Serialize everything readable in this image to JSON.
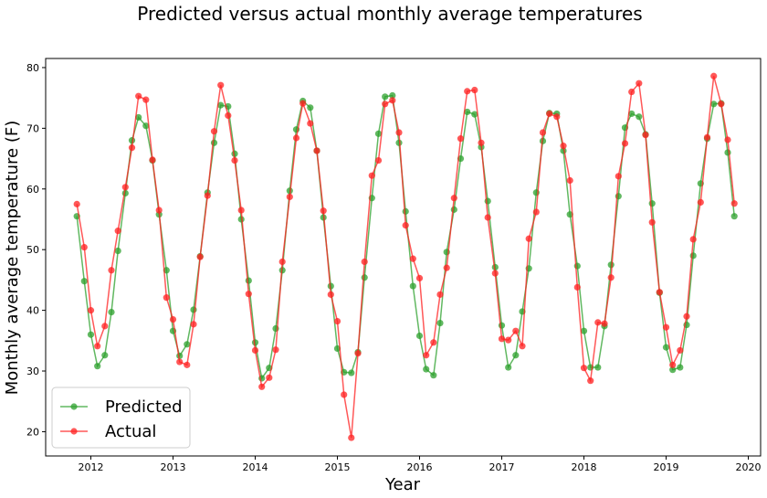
{
  "chart_data": {
    "type": "line",
    "title": "Predicted versus actual monthly average temperatures",
    "xlabel": "Year",
    "ylabel": "Monthly average temperature (F)",
    "xlim": [
      2011.45,
      2020.15
    ],
    "ylim": [
      16,
      81.5
    ],
    "xticks": [
      "2012",
      "2013",
      "2014",
      "2015",
      "2016",
      "2017",
      "2018",
      "2019",
      "2020"
    ],
    "yticks": [
      "20",
      "30",
      "40",
      "50",
      "60",
      "70",
      "80"
    ],
    "grid": false,
    "legend_position": "bottom-left",
    "x": [
      2011.83,
      2011.92,
      2012.0,
      2012.08,
      2012.17,
      2012.25,
      2012.33,
      2012.42,
      2012.5,
      2012.58,
      2012.67,
      2012.75,
      2012.83,
      2012.92,
      2013.0,
      2013.08,
      2013.17,
      2013.25,
      2013.33,
      2013.42,
      2013.5,
      2013.58,
      2013.67,
      2013.75,
      2013.83,
      2013.92,
      2014.0,
      2014.08,
      2014.17,
      2014.25,
      2014.33,
      2014.42,
      2014.5,
      2014.58,
      2014.67,
      2014.75,
      2014.83,
      2014.92,
      2015.0,
      2015.08,
      2015.17,
      2015.25,
      2015.33,
      2015.42,
      2015.5,
      2015.58,
      2015.67,
      2015.75,
      2015.83,
      2015.92,
      2016.0,
      2016.08,
      2016.17,
      2016.25,
      2016.33,
      2016.42,
      2016.5,
      2016.58,
      2016.67,
      2016.75,
      2016.83,
      2016.92,
      2017.0,
      2017.08,
      2017.17,
      2017.25,
      2017.33,
      2017.42,
      2017.5,
      2017.58,
      2017.67,
      2017.75,
      2017.83,
      2017.92,
      2018.0,
      2018.08,
      2018.17,
      2018.25,
      2018.33,
      2018.42,
      2018.5,
      2018.58,
      2018.67,
      2018.75,
      2018.83,
      2018.92,
      2019.0,
      2019.08,
      2019.17,
      2019.25,
      2019.33,
      2019.42,
      2019.5,
      2019.58,
      2019.67,
      2019.75,
      2019.83
    ],
    "series": [
      {
        "name": "Predicted",
        "color": "#2ca02c",
        "values": [
          55.5,
          44.8,
          36.0,
          30.8,
          32.6,
          39.7,
          49.8,
          59.3,
          68.0,
          71.8,
          70.4,
          64.7,
          55.8,
          46.6,
          36.6,
          32.5,
          34.4,
          40.1,
          48.9,
          59.4,
          67.6,
          73.8,
          73.6,
          65.8,
          55.0,
          44.9,
          34.7,
          28.8,
          30.5,
          37.0,
          46.6,
          59.7,
          69.8,
          74.5,
          73.4,
          66.3,
          55.3,
          44.0,
          33.7,
          29.8,
          29.7,
          33.1,
          45.4,
          58.5,
          69.1,
          75.2,
          75.4,
          67.6,
          56.3,
          44.0,
          35.8,
          30.3,
          29.3,
          37.9,
          49.6,
          56.6,
          65.0,
          72.7,
          72.3,
          66.9,
          58.0,
          47.1,
          37.5,
          30.6,
          32.6,
          39.8,
          46.9,
          59.4,
          67.9,
          72.5,
          72.4,
          66.3,
          55.8,
          47.3,
          36.6,
          30.6,
          30.6,
          37.4,
          47.5,
          58.8,
          70.1,
          72.4,
          71.9,
          69.0,
          57.6,
          42.9,
          33.9,
          30.2,
          30.6,
          37.6,
          49.0,
          60.9,
          68.3,
          74.0,
          74.1,
          66.0,
          55.5
        ]
      },
      {
        "name": "Actual",
        "color": "#ff2020",
        "values": [
          57.5,
          50.4,
          40.0,
          34.1,
          37.4,
          46.6,
          53.1,
          60.3,
          66.8,
          75.3,
          74.7,
          64.8,
          56.5,
          42.1,
          38.5,
          31.5,
          31.0,
          37.7,
          48.8,
          58.9,
          69.5,
          77.1,
          72.1,
          64.7,
          56.5,
          42.7,
          33.4,
          27.4,
          28.9,
          33.5,
          48.0,
          58.7,
          68.4,
          74.1,
          70.8,
          66.3,
          56.4,
          42.6,
          38.2,
          26.1,
          19.0,
          32.9,
          48.0,
          62.2,
          64.7,
          74.0,
          74.6,
          69.3,
          54.0,
          48.5,
          45.3,
          32.6,
          34.7,
          42.6,
          47.0,
          58.5,
          68.3,
          76.1,
          76.3,
          67.6,
          55.3,
          46.1,
          35.3,
          35.1,
          36.6,
          34.1,
          51.8,
          56.2,
          69.3,
          72.4,
          71.9,
          67.1,
          61.4,
          43.8,
          30.5,
          28.4,
          38.0,
          37.8,
          45.4,
          62.1,
          67.5,
          76.0,
          77.4,
          68.9,
          54.5,
          43.0,
          37.2,
          31.0,
          33.4,
          39.0,
          51.7,
          57.8,
          68.5,
          78.6,
          74.0,
          68.1,
          57.6
        ]
      }
    ]
  }
}
